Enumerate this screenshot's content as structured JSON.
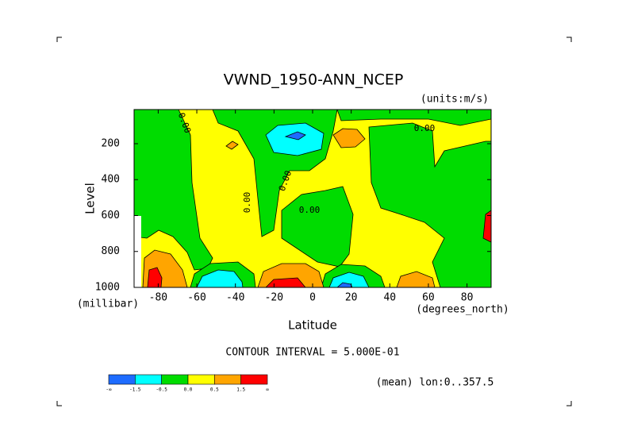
{
  "chart_data": {
    "type": "contour",
    "title": "VWND_1950-ANN_NCEP",
    "units": "(units:m/s)",
    "y_label": "Level",
    "y_unit": "(millibar)",
    "x_label": "Latitude",
    "x_unit": "(degrees_north)",
    "xlim": [
      -92.5,
      92.5
    ],
    "xticks": [
      -80,
      -60,
      -40,
      -20,
      0,
      20,
      40,
      60,
      80
    ],
    "ylim": [
      1000,
      10
    ],
    "yticks": [
      200,
      400,
      600,
      800,
      1000
    ],
    "contour_interval": "CONTOUR INTERVAL = 5.000E-01",
    "contour_labels": [
      "0.00",
      "0.00",
      "0.00",
      "0.00",
      "0.00"
    ],
    "colorbar_colors": [
      "#1e6cff",
      "#00ffff",
      "#00dc00",
      "#ffff00",
      "#ffa500",
      "#ff0000"
    ],
    "colorbar_labels": [
      "-∞",
      "-1.5",
      "-0.5",
      "0.0",
      "0.5",
      "1.5",
      "∞"
    ],
    "footnote": "(mean) lon:0..357.5"
  }
}
